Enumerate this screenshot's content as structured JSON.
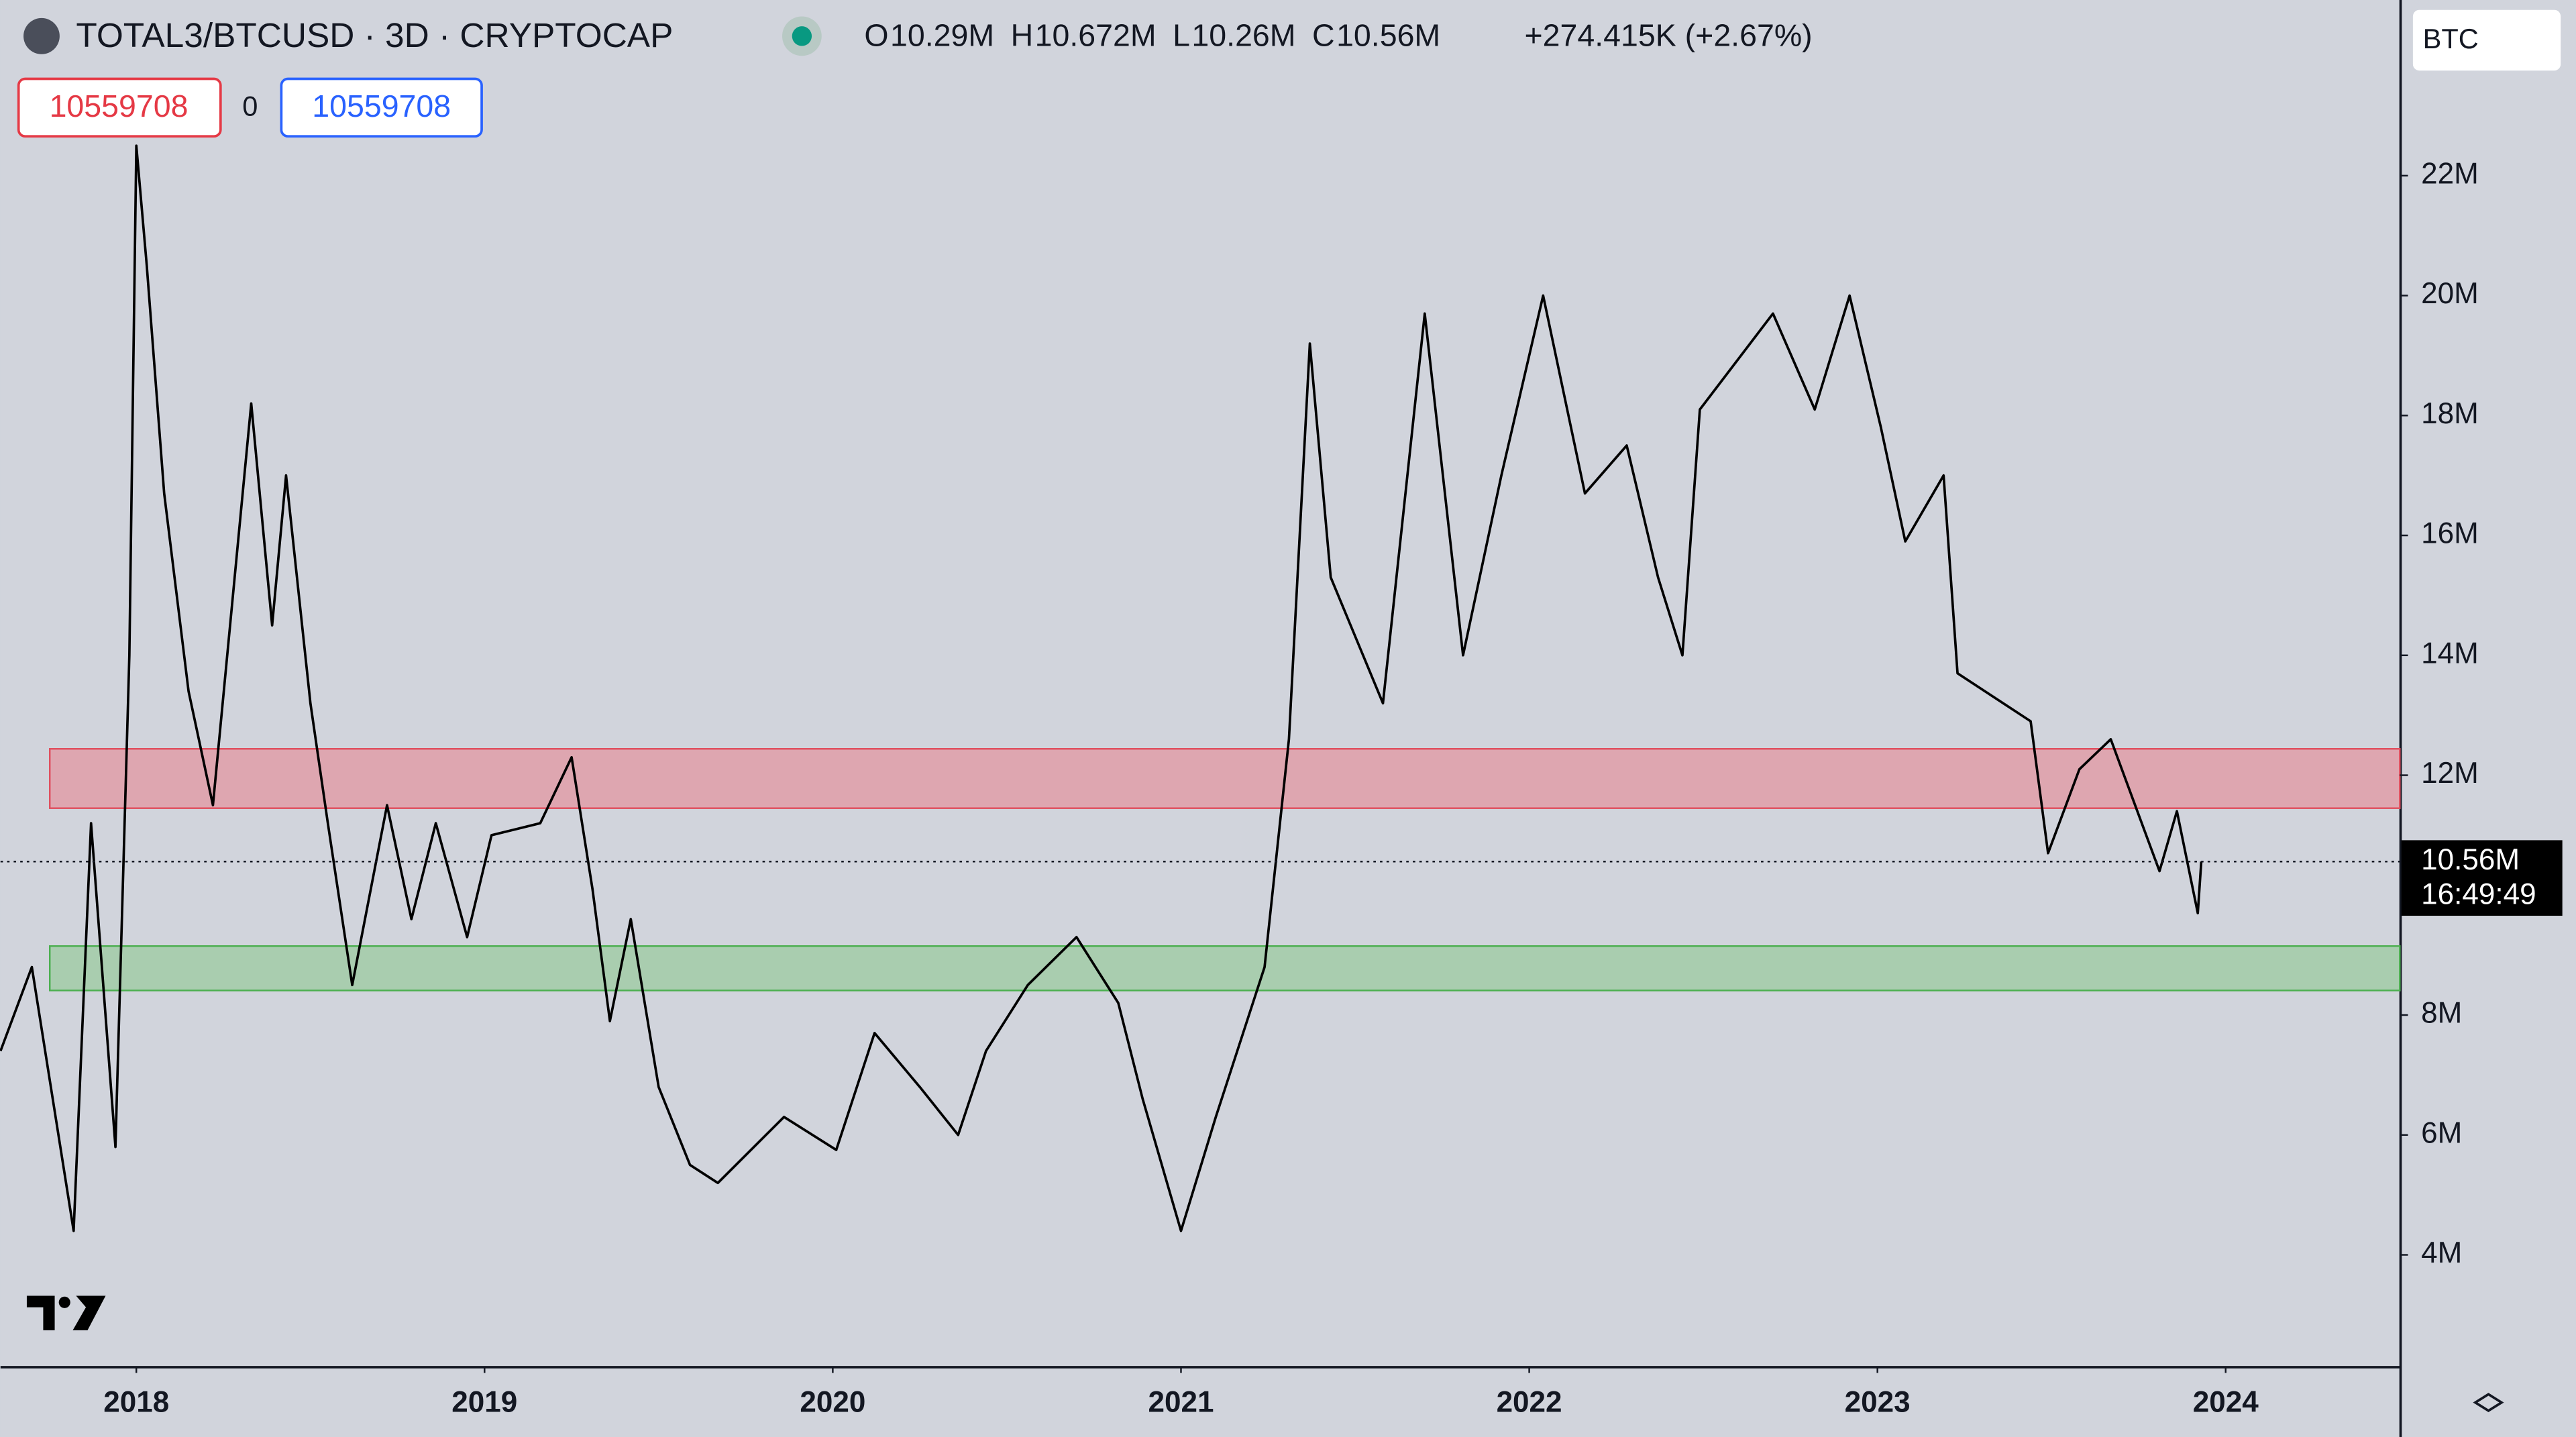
{
  "chart_data": {
    "type": "line",
    "title": "TOTAL3/BTCUSD · 3D · CRYPTOCAP",
    "ohlc": [
      {
        "key": "O",
        "value": "10.29M"
      },
      {
        "key": "H",
        "value": "10.672M"
      },
      {
        "key": "L",
        "value": "10.26M"
      },
      {
        "key": "C",
        "value": "10.56M"
      }
    ],
    "change": "+274.415K (+2.67%)",
    "inputs": [
      "10559708",
      "0",
      "10559708"
    ],
    "currency": "BTC",
    "countdown": "16:49:49",
    "last_price": {
      "value": 10560000,
      "label": "10.56M"
    },
    "x": [
      2017.61,
      2017.7,
      2017.82,
      2017.87,
      2017.94,
      2017.98,
      2018.0,
      2018.03,
      2018.08,
      2018.15,
      2018.22,
      2018.33,
      2018.39,
      2018.43,
      2018.5,
      2018.55,
      2018.62,
      2018.72,
      2018.79,
      2018.86,
      2018.95,
      2019.02,
      2019.16,
      2019.25,
      2019.31,
      2019.36,
      2019.42,
      2019.5,
      2019.59,
      2019.67,
      2019.86,
      2020.01,
      2020.12,
      2020.25,
      2020.36,
      2020.44,
      2020.56,
      2020.7,
      2020.82,
      2020.89,
      2021.0,
      2021.1,
      2021.24,
      2021.31,
      2021.37,
      2021.43,
      2021.58,
      2021.7,
      2021.81,
      2021.92,
      2022.04,
      2022.16,
      2022.28,
      2022.37,
      2022.44,
      2022.49,
      2022.7,
      2022.82,
      2022.92,
      2023.01,
      2023.08,
      2023.19,
      2023.23,
      2023.44,
      2023.49,
      2023.58,
      2023.67,
      2023.81,
      2023.86,
      2023.92,
      2023.93
    ],
    "series": [
      {
        "color": "#000000",
        "values": [
          7400000,
          8800000,
          4400000,
          11200000,
          5800000,
          14000000,
          22500000,
          20500000,
          16700000,
          13400000,
          11500000,
          18200000,
          14500000,
          17000000,
          13200000,
          11200000,
          8500000,
          11500000,
          9600000,
          11200000,
          9300000,
          11000000,
          11200000,
          12300000,
          10100000,
          7900000,
          9600000,
          6800000,
          5500000,
          5200000,
          6300000,
          5750000,
          7700000,
          6800000,
          6000000,
          7400000,
          8500000,
          9300000,
          8200000,
          6600000,
          4400000,
          6300000,
          8800000,
          12600000,
          19200000,
          15300000,
          13200000,
          19700000,
          14000000,
          17000000,
          20000000,
          16700000,
          17500000,
          15300000,
          14000000,
          18100000,
          19700000,
          18100000,
          20000000,
          17800000,
          15900000,
          17000000,
          13700000,
          12900000,
          10700000,
          12100000,
          12600000,
          10400000,
          11400000,
          9700000,
          10560000
        ]
      }
    ],
    "bands": [
      {
        "low": 11450000,
        "high": 12440000,
        "color": "#dea6b0",
        "edge": "#e0505f"
      },
      {
        "low": 8410000,
        "high": 9150000,
        "color": "#a9cdaf",
        "edge": "#4caf50"
      }
    ],
    "xlim": [
      2017.61,
      2024.5
    ],
    "xticks": [
      2018,
      2019,
      2020,
      2021,
      2022,
      2023,
      2024
    ],
    "ylim": [
      2140000,
      24930000
    ],
    "yticks": [
      {
        "value": 4000000,
        "label": "4M"
      },
      {
        "value": 6000000,
        "label": "6M"
      },
      {
        "value": 8000000,
        "label": "8M"
      },
      {
        "value": 12000000,
        "label": "12M"
      },
      {
        "value": 14000000,
        "label": "14M"
      },
      {
        "value": 16000000,
        "label": "16M"
      },
      {
        "value": 18000000,
        "label": "18M"
      },
      {
        "value": 20000000,
        "label": "20M"
      },
      {
        "value": 22000000,
        "label": "22M"
      }
    ],
    "grid": false
  }
}
